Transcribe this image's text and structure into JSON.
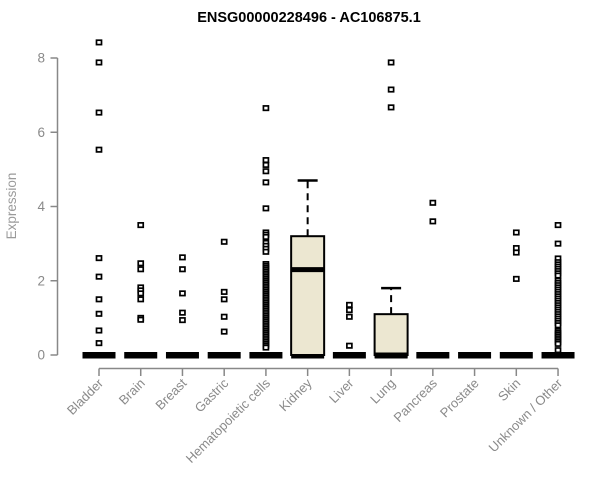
{
  "window": {
    "background": "#ffffff"
  },
  "chart_data": {
    "type": "boxplot",
    "title": "ENSG00000228496 - AC106875.1",
    "ylabel": "Expression",
    "xlabel": "",
    "ylim": [
      0,
      8.6
    ],
    "yticks": [
      0,
      2,
      4,
      6,
      8
    ],
    "grid": false,
    "legend": "none",
    "colors": {
      "box_fill": "#ECE7D1",
      "box_stroke": "#000000",
      "marker": "#000000",
      "axis": "#888888",
      "tick_label": "#8a8a8a",
      "title": "#000000"
    },
    "categories": [
      "Bladder",
      "Brain",
      "Breast",
      "Gastric",
      "Hematopoietic cells",
      "Kidney",
      "Liver",
      "Lung",
      "Pancreas",
      "Prostate",
      "Skin",
      "Unknown / Other"
    ],
    "groups": [
      {
        "category": "Bladder",
        "q1": 0,
        "median": 0,
        "q3": 0,
        "whisker_low": 0,
        "whisker_high": 0,
        "outliers": [
          8.42,
          7.88,
          6.53,
          5.53,
          2.61,
          2.11,
          1.5,
          1.11,
          0.66,
          0.32
        ]
      },
      {
        "category": "Brain",
        "q1": 0,
        "median": 0,
        "q3": 0,
        "whisker_low": 0,
        "whisker_high": 0,
        "outliers": [
          3.5,
          2.47,
          2.31,
          1.82,
          1.74,
          1.66,
          1.5,
          1.0,
          0.95
        ]
      },
      {
        "category": "Breast",
        "q1": 0,
        "median": 0,
        "q3": 0,
        "whisker_low": 0,
        "whisker_high": 0,
        "outliers": [
          2.63,
          2.31,
          1.66,
          1.14,
          0.94
        ]
      },
      {
        "category": "Gastric",
        "q1": 0,
        "median": 0,
        "q3": 0,
        "whisker_low": 0,
        "whisker_high": 0,
        "outliers": [
          3.05,
          1.7,
          1.5,
          1.03,
          0.63
        ]
      },
      {
        "category": "Hematopoietic cells",
        "q1": 0,
        "median": 0,
        "q3": 0,
        "whisker_low": 0,
        "whisker_high": 0,
        "outliers": [
          6.65,
          5.25,
          5.12,
          4.95,
          4.65,
          3.95,
          3.3,
          3.24,
          3.18,
          3.02,
          2.94,
          2.86,
          2.78,
          2.45,
          2.4,
          2.35,
          2.3,
          2.25,
          2.2,
          2.15,
          2.1,
          2.05,
          2.0,
          1.95,
          1.9,
          1.85,
          1.8,
          1.75,
          1.7,
          1.65,
          1.6,
          1.55,
          1.5,
          1.45,
          1.4,
          1.35,
          1.3,
          1.25,
          1.2,
          1.15,
          1.1,
          1.05,
          1.0,
          0.95,
          0.9,
          0.85,
          0.8,
          0.75,
          0.7,
          0.65,
          0.6,
          0.55,
          0.5,
          0.45,
          0.4,
          0.35,
          0.3,
          0.25,
          0.2
        ]
      },
      {
        "category": "Kidney",
        "q1": 0,
        "median": 2.3,
        "q3": 3.2,
        "whisker_low": 0,
        "whisker_high": 4.7,
        "outliers": []
      },
      {
        "category": "Liver",
        "q1": 0,
        "median": 0,
        "q3": 0,
        "whisker_low": 0,
        "whisker_high": 0,
        "outliers": [
          1.35,
          1.21,
          1.03,
          0.25
        ]
      },
      {
        "category": "Lung",
        "q1": 0,
        "median": 0,
        "q3": 1.1,
        "whisker_low": 0,
        "whisker_high": 1.8,
        "outliers": [
          7.88,
          7.15,
          6.67
        ]
      },
      {
        "category": "Pancreas",
        "q1": 0,
        "median": 0,
        "q3": 0,
        "whisker_low": 0,
        "whisker_high": 0,
        "outliers": [
          4.1,
          3.6
        ]
      },
      {
        "category": "Prostate",
        "q1": 0,
        "median": 0,
        "q3": 0,
        "whisker_low": 0,
        "whisker_high": 0,
        "outliers": []
      },
      {
        "category": "Skin",
        "q1": 0,
        "median": 0,
        "q3": 0,
        "whisker_low": 0,
        "whisker_high": 0,
        "outliers": [
          3.3,
          2.88,
          2.76,
          2.05
        ]
      },
      {
        "category": "Unknown / Other",
        "q1": 0,
        "median": 0,
        "q3": 0,
        "whisker_low": 0,
        "whisker_high": 0,
        "outliers": [
          3.5,
          3.0,
          2.6,
          2.5,
          2.44,
          2.38,
          2.32,
          2.26,
          2.2,
          2.14,
          2.0,
          1.94,
          1.88,
          1.82,
          1.76,
          1.7,
          1.64,
          1.58,
          1.52,
          1.46,
          1.4,
          1.34,
          1.28,
          1.22,
          1.16,
          1.1,
          1.04,
          0.98,
          0.92,
          0.86,
          0.8,
          0.65,
          0.6,
          0.55,
          0.5,
          0.45,
          0.4,
          0.35,
          0.3,
          0.13
        ]
      }
    ]
  }
}
